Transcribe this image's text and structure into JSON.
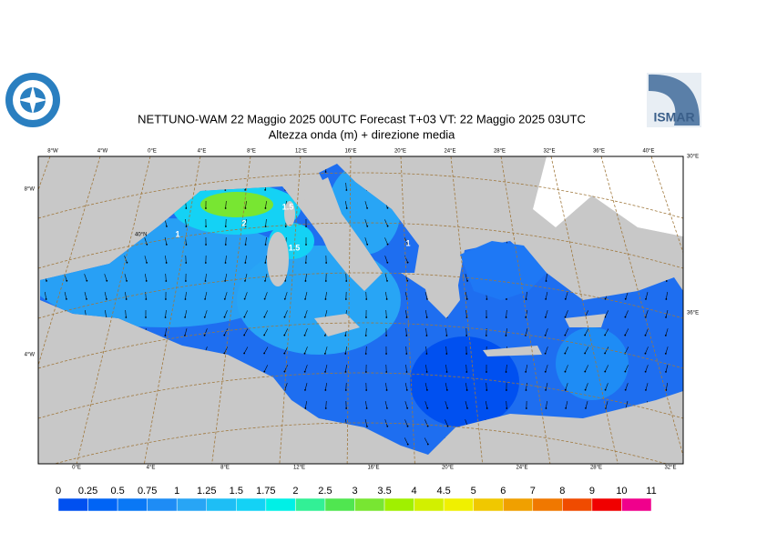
{
  "header": {
    "title": "NETTUNO-WAM  22   Maggio  2025 00UTC Forecast T+03 VT: 22   Maggio  2025 03UTC",
    "subtitle": "Altezza onda (m) + direzione media",
    "logo_text": "ISMAR"
  },
  "map": {
    "top_labels": [
      "8°W",
      "4°W",
      "0°E",
      "4°E",
      "8°E",
      "12°E",
      "16°E",
      "20°E",
      "24°E",
      "28°E",
      "32°E",
      "36°E",
      "40°E"
    ],
    "bottom_labels": [
      "0°E",
      "4°E",
      "8°E",
      "12°E",
      "16°E",
      "20°E",
      "24°E",
      "28°E",
      "32°E"
    ],
    "left_labels": [
      "8°W",
      "4°W"
    ],
    "right_labels": [
      "30°E",
      "36°E"
    ],
    "inner_labels": [
      "40°N"
    ],
    "contour_labels": [
      "1",
      "2",
      "1.5",
      "1.5",
      "1"
    ]
  },
  "colorbar": {
    "labels": [
      0,
      0.25,
      0.5,
      0.75,
      1,
      1.25,
      1.5,
      1.75,
      2,
      2.5,
      3,
      3.5,
      4,
      4.5,
      5,
      6,
      7,
      8,
      9,
      10,
      11
    ],
    "colors": [
      "#0050f0",
      "#0064f5",
      "#0a78f5",
      "#1e8cf5",
      "#28a5f5",
      "#1ebef5",
      "#14d2f5",
      "#00f0e6",
      "#32f096",
      "#50e650",
      "#78e632",
      "#a0f000",
      "#d2f000",
      "#f0f000",
      "#f0c800",
      "#f0a000",
      "#f07800",
      "#f04b00",
      "#f00000",
      "#f0008c"
    ]
  }
}
